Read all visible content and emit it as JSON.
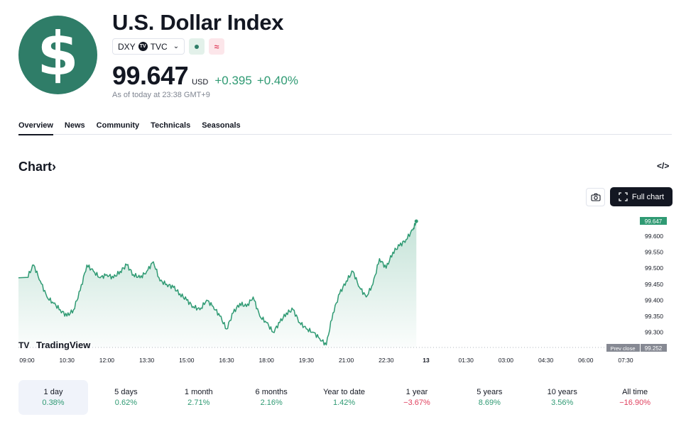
{
  "symbol": {
    "logo_glyph": "$",
    "title": "U.S. Dollar Index",
    "ticker": "DXY",
    "exchange": "TVC",
    "exchange_icon": "tradingview-icon",
    "status_icon": "market-open-dot-icon",
    "delay_icon": "≈",
    "price": "99.647",
    "currency": "USD",
    "change_abs": "+0.395",
    "change_pct": "+0.40%",
    "as_of": "As of today at 23:38 GMT+9"
  },
  "tabs": [
    "Overview",
    "News",
    "Community",
    "Technicals",
    "Seasonals"
  ],
  "active_tab": "Overview",
  "chart_section": {
    "heading": "Chart",
    "heading_icon": "chevron-right-icon",
    "embed_icon": "</>",
    "camera_icon": "camera-icon",
    "full_chart_label": "Full chart",
    "full_chart_icon": "fullscreen-icon",
    "watermark": "TradingView",
    "prev_close_label": "Prev close",
    "prev_close_value": "99.252",
    "current_value": "99.647"
  },
  "chart_data": {
    "type": "area",
    "x_ticks": [
      "09:00",
      "10:30",
      "12:00",
      "13:30",
      "15:00",
      "16:30",
      "18:00",
      "19:30",
      "21:00",
      "22:30",
      "13",
      "01:30",
      "03:00",
      "04:30",
      "06:00",
      "07:30"
    ],
    "y_ticks": [
      "99.600",
      "99.550",
      "99.500",
      "99.450",
      "99.400",
      "99.350",
      "99.300"
    ],
    "ylim": [
      99.252,
      99.647
    ],
    "line_color": "#2f9a73",
    "series": [
      {
        "x": [
          "09:00",
          "09:15",
          "09:30",
          "09:45",
          "10:00",
          "10:15",
          "10:30",
          "10:45",
          "11:00",
          "11:15",
          "11:30",
          "11:45",
          "12:00",
          "12:15",
          "12:30",
          "12:45",
          "13:00",
          "13:15",
          "13:30",
          "13:45",
          "14:00",
          "14:15",
          "14:30",
          "14:45",
          "15:00",
          "15:15",
          "15:30",
          "15:45",
          "16:00",
          "16:15",
          "16:30",
          "16:45",
          "17:00",
          "17:15",
          "17:30",
          "17:45",
          "18:00",
          "18:15",
          "18:30",
          "18:45",
          "19:00",
          "19:15",
          "19:30",
          "19:45",
          "20:00",
          "20:15",
          "20:30",
          "20:45",
          "21:00",
          "21:15",
          "21:30",
          "21:45",
          "22:00",
          "22:15",
          "22:30",
          "22:45",
          "23:00",
          "23:15",
          "23:30",
          "23:38"
        ],
        "values": [
          99.47,
          99.51,
          99.46,
          99.41,
          99.39,
          99.37,
          99.35,
          99.37,
          99.43,
          99.51,
          99.49,
          99.47,
          99.48,
          99.47,
          99.49,
          99.51,
          99.48,
          99.47,
          99.49,
          99.52,
          99.46,
          99.45,
          99.44,
          99.42,
          99.4,
          99.38,
          99.37,
          99.4,
          99.38,
          99.35,
          99.31,
          99.36,
          99.39,
          99.38,
          99.41,
          99.35,
          99.33,
          99.3,
          99.33,
          99.36,
          99.37,
          99.33,
          99.31,
          99.3,
          99.28,
          99.26,
          99.36,
          99.42,
          99.46,
          99.49,
          99.44,
          99.41,
          99.45,
          99.53,
          99.5,
          99.55,
          99.57,
          99.59,
          99.62,
          99.647
        ]
      }
    ]
  },
  "periods": [
    {
      "label": "1 day",
      "value": "0.38%",
      "sign": "pos"
    },
    {
      "label": "5 days",
      "value": "0.62%",
      "sign": "pos"
    },
    {
      "label": "1 month",
      "value": "2.71%",
      "sign": "pos"
    },
    {
      "label": "6 months",
      "value": "2.16%",
      "sign": "pos"
    },
    {
      "label": "Year to date",
      "value": "1.42%",
      "sign": "pos"
    },
    {
      "label": "1 year",
      "value": "−3.67%",
      "sign": "neg"
    },
    {
      "label": "5 years",
      "value": "8.69%",
      "sign": "pos"
    },
    {
      "label": "10 years",
      "value": "3.56%",
      "sign": "pos"
    },
    {
      "label": "All time",
      "value": "−16.90%",
      "sign": "neg"
    }
  ],
  "active_period": "1 day"
}
